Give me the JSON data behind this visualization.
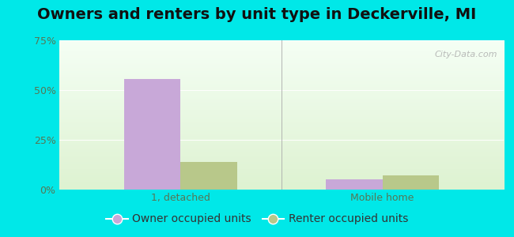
{
  "title": "Owners and renters by unit type in Deckerville, MI",
  "categories": [
    "1, detached",
    "Mobile home"
  ],
  "owner_values": [
    55.5,
    5.0
  ],
  "renter_values": [
    14.0,
    7.0
  ],
  "owner_color": "#c8a8d8",
  "renter_color": "#b8c88a",
  "bar_width": 0.28,
  "ylim": [
    0,
    75
  ],
  "yticks": [
    0,
    25,
    50,
    75
  ],
  "yticklabels": [
    "0%",
    "25%",
    "50%",
    "75%"
  ],
  "owner_label": "Owner occupied units",
  "renter_label": "Renter occupied units",
  "outer_bg": "#00e8e8",
  "inner_bg_topleft": "#e8f5e0",
  "inner_bg_topright": "#f8fff8",
  "inner_bg_bottomleft": "#d8ecc8",
  "inner_bg_bottomright": "#eef8ee",
  "grid_color": "#c8dcc0",
  "watermark": "City-Data.com",
  "title_fontsize": 14,
  "axis_fontsize": 9,
  "legend_fontsize": 10,
  "tick_color": "#557755"
}
